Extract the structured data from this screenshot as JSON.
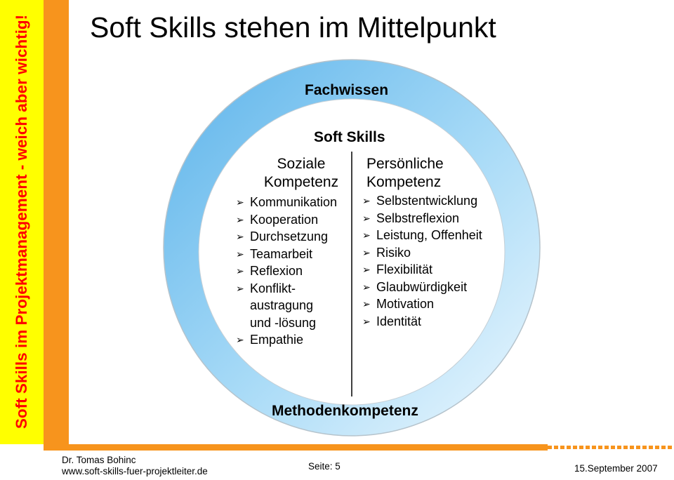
{
  "sidebar": {
    "text": "Soft Skills im Projektmanagement - weich aber wichtig!"
  },
  "title": "Soft Skills stehen im Mittelpunkt",
  "diagram": {
    "outer_label": "Fachwissen",
    "inner_label": "Soft Skills",
    "bottom_label": "Methodenkompetenz",
    "soziale": {
      "heading_line1": "Soziale",
      "heading_line2": "Kompetenz",
      "items": [
        "Kommunikation",
        "Kooperation",
        "Durchsetzung",
        "Teamarbeit",
        "Reflexion",
        "Konflikt-",
        "austragung",
        "und -lösung",
        "Empathie"
      ]
    },
    "persoenliche": {
      "heading_line1": "Persönliche",
      "heading_line2": "Kompetenz",
      "items": [
        "Selbstentwicklung",
        "Selbstreflexion",
        "Leistung, Offenheit",
        "Risiko",
        "Flexibilität",
        "Glaubwürdigkeit",
        "Motivation",
        "Identität"
      ]
    },
    "colors": {
      "ring_dark": "#7fc4f0",
      "ring_light": "#dff1fc",
      "divider": "#000000",
      "bullet": "#000000"
    }
  },
  "footer": {
    "author": "Dr. Tomas Bohinc",
    "website": "www.soft-skills-fuer-projektleiter.de",
    "page": "Seite: 5",
    "date": "15.September 2007"
  }
}
